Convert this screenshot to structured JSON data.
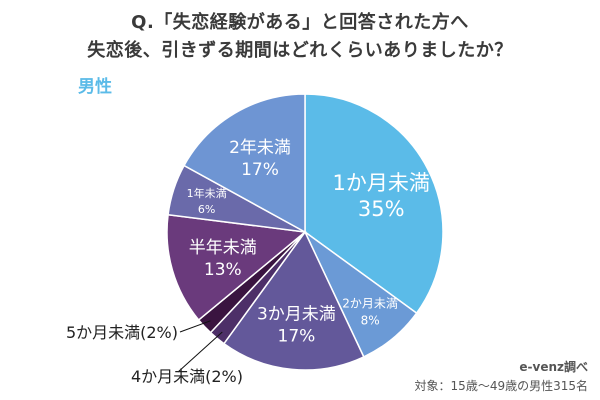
{
  "header": {
    "title_line1": "Q.「失恋経験がある」と回答された方へ",
    "title_line2": "失恋後、引きずる期間はどれくらいありましたか？",
    "group_label": "男性"
  },
  "credit": {
    "line1": "e-venz調べ",
    "line2": "対象：15歳〜49歳の男性315名"
  },
  "chart_data": {
    "type": "pie",
    "start_angle_deg": 0,
    "direction": "clockwise",
    "slices": [
      {
        "label": "1か月未満",
        "value": 35,
        "value_label": "35%",
        "color": "#5bbbe8"
      },
      {
        "label": "2か月未満",
        "value": 8,
        "value_label": "8%",
        "color": "#6b9ad6"
      },
      {
        "label": "3か月未満",
        "value": 17,
        "value_label": "17%",
        "color": "#63589a"
      },
      {
        "label": "4か月未満",
        "value": 2,
        "value_label": "(2%)",
        "color": "#4d2f68"
      },
      {
        "label": "5か月未満",
        "value": 2,
        "value_label": "(2%)",
        "color": "#3a1440"
      },
      {
        "label": "半年未満",
        "value": 13,
        "value_label": "13%",
        "color": "#6a3a7c"
      },
      {
        "label": "1年未満",
        "value": 6,
        "value_label": "6%",
        "color": "#6a6aaa"
      },
      {
        "label": "2年未満",
        "value": 17,
        "value_label": "17%",
        "color": "#6e95d3"
      }
    ]
  }
}
